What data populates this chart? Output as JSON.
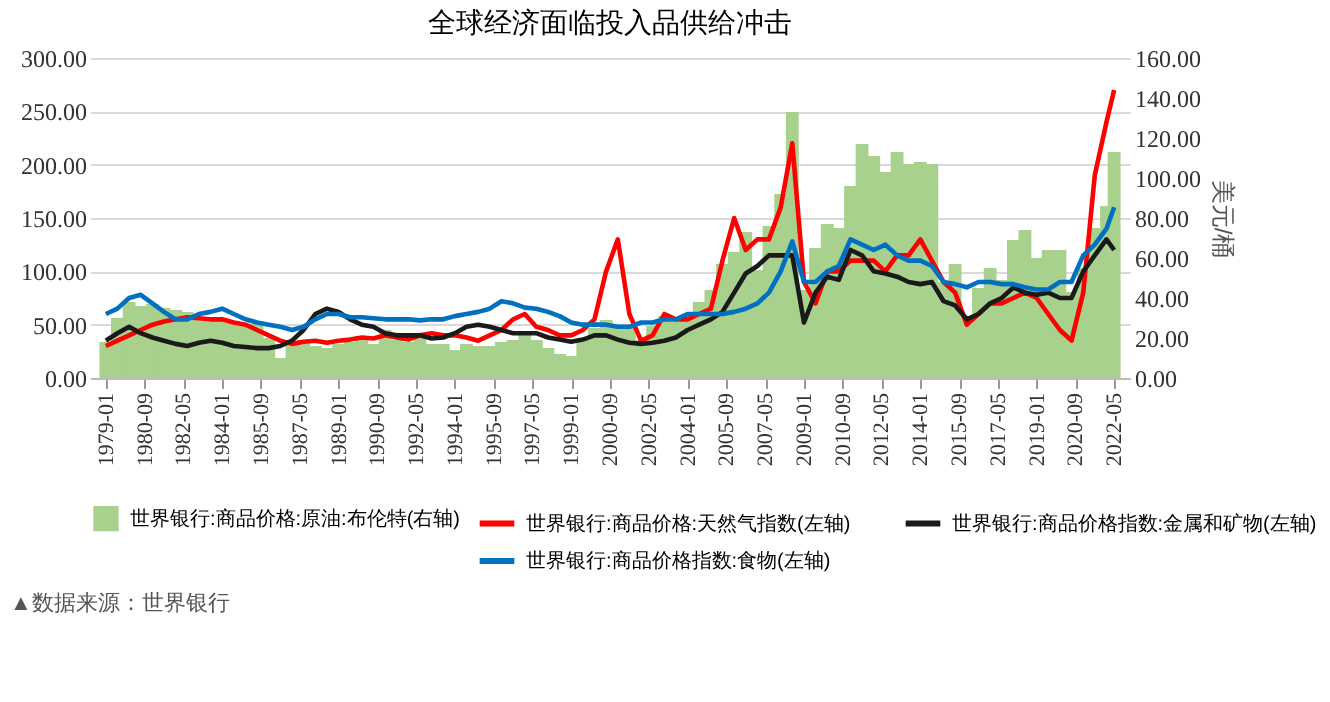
{
  "chart_data": {
    "type": "line",
    "title": "全球经济面临投入品供给冲击",
    "y2label": "美元/桶",
    "annotations": [
      "▲数据来源：世界银行"
    ],
    "x": [
      "1979-01",
      "1979-07",
      "1980-01",
      "1980-07",
      "1981-01",
      "1981-07",
      "1982-01",
      "1982-07",
      "1983-01",
      "1983-07",
      "1984-01",
      "1984-07",
      "1985-01",
      "1985-07",
      "1986-01",
      "1986-07",
      "1987-01",
      "1987-07",
      "1988-01",
      "1988-07",
      "1989-01",
      "1989-07",
      "1990-01",
      "1990-07",
      "1991-01",
      "1991-07",
      "1992-01",
      "1992-07",
      "1993-01",
      "1993-07",
      "1994-01",
      "1994-07",
      "1995-01",
      "1995-07",
      "1996-01",
      "1996-07",
      "1997-01",
      "1997-07",
      "1998-01",
      "1998-07",
      "1999-01",
      "1999-07",
      "2000-01",
      "2000-07",
      "2001-01",
      "2001-07",
      "2002-01",
      "2002-07",
      "2003-01",
      "2003-07",
      "2004-01",
      "2004-07",
      "2005-01",
      "2005-07",
      "2006-01",
      "2006-07",
      "2007-01",
      "2007-07",
      "2008-01",
      "2008-07",
      "2009-01",
      "2009-07",
      "2010-01",
      "2010-07",
      "2011-01",
      "2011-07",
      "2012-01",
      "2012-07",
      "2013-01",
      "2013-07",
      "2014-01",
      "2014-07",
      "2015-01",
      "2015-07",
      "2016-01",
      "2016-07",
      "2017-01",
      "2017-07",
      "2018-01",
      "2018-07",
      "2019-01",
      "2019-07",
      "2020-01",
      "2020-07",
      "2021-01",
      "2021-07",
      "2022-01",
      "2022-05"
    ],
    "series": [
      {
        "name": "世界银行:商品价格:原油:布伦特(右轴)",
        "type": "bar",
        "axis": "y2",
        "color": "#a9d18e",
        "values": [
          18,
          30,
          38,
          36,
          37,
          35,
          34,
          33,
          30,
          29,
          29,
          28,
          27,
          27,
          20,
          10,
          18,
          19,
          16,
          15,
          17,
          18,
          21,
          17,
          24,
          19,
          18,
          20,
          17,
          17,
          14,
          17,
          16,
          16,
          18,
          19,
          23,
          19,
          15,
          12,
          11,
          20,
          25,
          29,
          25,
          25,
          19,
          26,
          31,
          28,
          31,
          38,
          44,
          57,
          63,
          73,
          54,
          76,
          92,
          133,
          44,
          65,
          77,
          75,
          96,
          117,
          111,
          103,
          113,
          107,
          108,
          107,
          48,
          57,
          31,
          45,
          55,
          49,
          69,
          74,
          60,
          64,
          64,
          43,
          55,
          75,
          86,
          113
        ]
      },
      {
        "name": "世界银行:商品价格:天然气指数(左轴)",
        "color": "#ff0000",
        "values": [
          30,
          35,
          40,
          45,
          50,
          53,
          55,
          57,
          56,
          55,
          55,
          52,
          50,
          45,
          40,
          35,
          32,
          34,
          35,
          33,
          35,
          36,
          38,
          37,
          40,
          38,
          36,
          40,
          42,
          40,
          40,
          38,
          35,
          40,
          45,
          55,
          60,
          48,
          45,
          40,
          40,
          45,
          55,
          100,
          130,
          60,
          35,
          40,
          60,
          55,
          55,
          60,
          65,
          110,
          150,
          120,
          130,
          130,
          160,
          220,
          90,
          70,
          100,
          100,
          110,
          110,
          110,
          100,
          115,
          115,
          130,
          110,
          90,
          80,
          50,
          60,
          70,
          70,
          75,
          80,
          75,
          60,
          45,
          35,
          80,
          190,
          240,
          270
        ]
      },
      {
        "name": "世界银行:商品价格指数:金属和矿物(左轴)",
        "color": "#1a1a1a",
        "values": [
          35,
          42,
          48,
          42,
          38,
          35,
          32,
          30,
          33,
          35,
          33,
          30,
          29,
          28,
          28,
          30,
          35,
          45,
          60,
          65,
          62,
          55,
          50,
          48,
          42,
          40,
          40,
          40,
          37,
          38,
          42,
          48,
          50,
          48,
          45,
          42,
          42,
          42,
          38,
          36,
          34,
          36,
          40,
          40,
          36,
          33,
          32,
          33,
          35,
          38,
          45,
          50,
          55,
          62,
          80,
          98,
          105,
          115,
          115,
          115,
          52,
          80,
          95,
          92,
          120,
          115,
          100,
          98,
          95,
          90,
          88,
          90,
          72,
          68,
          55,
          60,
          70,
          75,
          85,
          80,
          78,
          80,
          75,
          75,
          100,
          115,
          130,
          120
        ]
      },
      {
        "name": "世界银行:商品价格指数:食物(左轴)",
        "color": "#0070c0",
        "values": [
          60,
          65,
          75,
          78,
          70,
          62,
          55,
          55,
          60,
          62,
          65,
          60,
          55,
          52,
          50,
          48,
          45,
          48,
          55,
          60,
          60,
          57,
          57,
          56,
          55,
          55,
          55,
          54,
          55,
          55,
          58,
          60,
          62,
          65,
          72,
          70,
          66,
          65,
          62,
          58,
          52,
          50,
          50,
          50,
          48,
          48,
          52,
          52,
          55,
          55,
          60,
          60,
          60,
          60,
          62,
          65,
          70,
          80,
          100,
          128,
          90,
          90,
          100,
          105,
          130,
          125,
          120,
          125,
          115,
          110,
          110,
          105,
          90,
          88,
          85,
          90,
          90,
          88,
          88,
          85,
          83,
          83,
          90,
          90,
          115,
          125,
          140,
          160
        ]
      }
    ],
    "xlim": [
      "1978-10",
      "2022-08"
    ],
    "xticks": [
      {
        "value": "1979-01",
        "label": "1979-01"
      },
      {
        "value": "1980-09",
        "label": "1980-09"
      },
      {
        "value": "1982-05",
        "label": "1982-05"
      },
      {
        "value": "1984-01",
        "label": "1984-01"
      },
      {
        "value": "1985-09",
        "label": "1985-09"
      },
      {
        "value": "1987-05",
        "label": "1987-05"
      },
      {
        "value": "1989-01",
        "label": "1989-01"
      },
      {
        "value": "1990-09",
        "label": "1990-09"
      },
      {
        "value": "1992-05",
        "label": "1992-05"
      },
      {
        "value": "1994-01",
        "label": "1994-01"
      },
      {
        "value": "1995-09",
        "label": "1995-09"
      },
      {
        "value": "1997-05",
        "label": "1997-05"
      },
      {
        "value": "1999-01",
        "label": "1999-01"
      },
      {
        "value": "2000-09",
        "label": "2000-09"
      },
      {
        "value": "2002-05",
        "label": "2002-05"
      },
      {
        "value": "2004-01",
        "label": "2004-01"
      },
      {
        "value": "2005-09",
        "label": "2005-09"
      },
      {
        "value": "2007-05",
        "label": "2007-05"
      },
      {
        "value": "2009-01",
        "label": "2009-01"
      },
      {
        "value": "2010-09",
        "label": "2010-09"
      },
      {
        "value": "2012-05",
        "label": "2012-05"
      },
      {
        "value": "2014-01",
        "label": "2014-01"
      },
      {
        "value": "2015-09",
        "label": "2015-09"
      },
      {
        "value": "2017-05",
        "label": "2017-05"
      },
      {
        "value": "2019-01",
        "label": "2019-01"
      },
      {
        "value": "2020-09",
        "label": "2020-09"
      },
      {
        "value": "2022-05",
        "label": "2022-05"
      }
    ],
    "ylim": [
      0,
      300
    ],
    "yticks": [
      {
        "value": 0,
        "label": "0.00"
      },
      {
        "value": 50,
        "label": "50.00"
      },
      {
        "value": 100,
        "label": "100.00"
      },
      {
        "value": 150,
        "label": "150.00"
      },
      {
        "value": 200,
        "label": "200.00"
      },
      {
        "value": 250,
        "label": "250.00"
      },
      {
        "value": 300,
        "label": "300.00"
      }
    ],
    "y2lim": [
      0,
      160
    ],
    "y2ticks": [
      {
        "value": 0,
        "label": "0.00"
      },
      {
        "value": 20,
        "label": "20.00"
      },
      {
        "value": 40,
        "label": "40.00"
      },
      {
        "value": 60,
        "label": "60.00"
      },
      {
        "value": 80,
        "label": "80.00"
      },
      {
        "value": 100,
        "label": "100.00"
      },
      {
        "value": 120,
        "label": "120.00"
      },
      {
        "value": 140,
        "label": "140.00"
      },
      {
        "value": 160,
        "label": "160.00"
      }
    ],
    "grid": "y",
    "legend": "bottom",
    "line_style": "solid",
    "marker": "none"
  }
}
